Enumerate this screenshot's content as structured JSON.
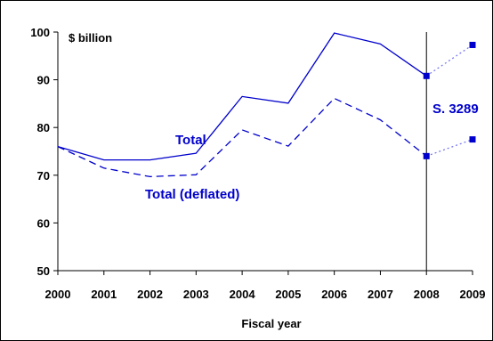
{
  "chart_data": {
    "type": "line",
    "title": "",
    "unit_label": "$ billion",
    "xlabel": "Fiscal year",
    "ylabel": "",
    "x": [
      "2000",
      "2001",
      "2002",
      "2003",
      "2004",
      "2005",
      "2006",
      "2007",
      "2008",
      "2009"
    ],
    "ylim": [
      50,
      100
    ],
    "yticks": [
      50,
      60,
      70,
      80,
      90,
      100
    ],
    "grid": false,
    "series": [
      {
        "name": "Total",
        "style": "solid",
        "values": [
          76.0,
          73.2,
          73.2,
          74.6,
          86.5,
          85.1,
          99.8,
          97.5,
          90.8,
          null
        ]
      },
      {
        "name": "Total (deflated)",
        "style": "dashed",
        "values": [
          76.0,
          71.5,
          69.7,
          70.1,
          79.5,
          76.1,
          86.1,
          81.6,
          74.0,
          null
        ]
      },
      {
        "name": "",
        "style": "dotted",
        "values": [
          null,
          null,
          null,
          null,
          null,
          null,
          null,
          null,
          90.8,
          97.3
        ]
      },
      {
        "name": "",
        "style": "dotted",
        "values": [
          null,
          null,
          null,
          null,
          null,
          null,
          null,
          null,
          74.0,
          77.5
        ]
      }
    ],
    "annotations": [
      {
        "text": "S. 3289",
        "x": "2008"
      }
    ],
    "colors": {
      "series": "#0000cc",
      "projection": "#7a7af0",
      "axis": "#000000"
    }
  }
}
